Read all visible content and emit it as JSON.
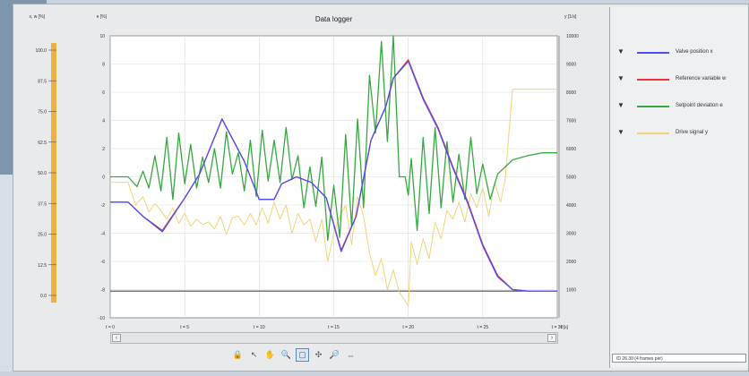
{
  "window": {
    "title": "Data logger"
  },
  "toolbar": {
    "icons": [
      "lock-icon",
      "pointer-icon",
      "hand-icon",
      "zoom-in-icon",
      "zoom-rect-icon",
      "zoom-all-icon",
      "zoom-out-icon",
      "zoom-x-icon"
    ],
    "active_index": 4
  },
  "legend": [
    {
      "label": "Valve position x",
      "color": "#4b4df2"
    },
    {
      "label": "Reference variable w",
      "color": "#e8333d"
    },
    {
      "label": "Setpoint deviation e",
      "color": "#36a83f"
    },
    {
      "label": "Drive signal y",
      "color": "#f0d37a"
    }
  ],
  "status_text": "ID 26 30 (4 frames per)",
  "chart_data": {
    "type": "line",
    "title": "Data logger",
    "left_axis_1": {
      "label": "x, w [%]",
      "ticks": [
        "100.0",
        "87.5",
        "75.0",
        "62.5",
        "50.0",
        "37.5",
        "25.0",
        "12.5",
        "0.0"
      ],
      "range": [
        0,
        100
      ]
    },
    "left_axis_2": {
      "label": "e [%]",
      "ticks": [
        "10",
        "8",
        "6",
        "4",
        "2",
        "0",
        "-2",
        "-4",
        "-6",
        "-8",
        "-10"
      ],
      "range": [
        -10,
        10
      ]
    },
    "right_axis": {
      "label": "y [1/s]",
      "ticks": [
        "10000",
        "9000",
        "8000",
        "7000",
        "6000",
        "5000",
        "4000",
        "3000",
        "2000",
        "1000"
      ],
      "range": [
        0,
        10000
      ]
    },
    "x_axis": {
      "ticks": [
        "t = 0",
        "t = 5",
        "t = 10",
        "t = 15",
        "t = 20",
        "t = 25",
        "t = 30"
      ],
      "unit": "t [s]",
      "range": [
        0,
        30
      ]
    },
    "grid": true,
    "series": [
      {
        "name": "Valve position x",
        "axis": "e",
        "color": "#4b4df2",
        "x": [
          0,
          1.2,
          2.2,
          3.5,
          5,
          6,
          7.5,
          9,
          10,
          11,
          11.5,
          12.5,
          13.5,
          14.5,
          15.5,
          16.5,
          17.5,
          18.5,
          19,
          20,
          21,
          22,
          23,
          24,
          25,
          26,
          27,
          28,
          30
        ],
        "y": [
          -1.8,
          -1.8,
          -2.8,
          -3.9,
          -1.5,
          0.2,
          4.1,
          1.1,
          -1.6,
          -1.6,
          -0.5,
          0,
          -0.4,
          -1.5,
          -5.3,
          -2.8,
          2.6,
          5,
          7,
          8.2,
          5.5,
          3.4,
          0.6,
          -1.9,
          -4.9,
          -7.1,
          -8,
          -8.1,
          -8.1
        ]
      },
      {
        "name": "Reference variable w",
        "axis": "e",
        "color": "#e8333d",
        "x": [
          0,
          1.2,
          2.2,
          3.5,
          5,
          6,
          7.5,
          9,
          10,
          11,
          11.5,
          12.5,
          13.5,
          14.5,
          15.5,
          16.5,
          17.5,
          18.5,
          19,
          20,
          21,
          22,
          23,
          24,
          25,
          26,
          27,
          28,
          30
        ],
        "y": [
          -1.8,
          -1.8,
          -2.8,
          -3.8,
          -1.5,
          0.2,
          4.1,
          1.1,
          -1.6,
          -1.6,
          -0.5,
          0,
          -0.4,
          -1.5,
          -5.2,
          -2.8,
          2.6,
          5,
          7,
          8.3,
          5.6,
          3.5,
          0.7,
          -1.8,
          -4.8,
          -7,
          -8,
          -8.1,
          -8.1
        ]
      },
      {
        "name": "Setpoint deviation e",
        "axis": "e",
        "color": "#36a83f",
        "x": [
          0,
          1.2,
          1.8,
          2.2,
          2.6,
          3,
          3.4,
          3.8,
          4.2,
          4.6,
          5,
          5.4,
          5.8,
          6.2,
          6.6,
          7,
          7.4,
          7.8,
          8.2,
          8.6,
          9,
          9.4,
          9.8,
          10.2,
          10.6,
          11,
          11.4,
          11.8,
          12.2,
          12.6,
          13,
          13.4,
          13.8,
          14.2,
          14.6,
          15,
          15.4,
          15.8,
          16.2,
          16.6,
          17,
          17.4,
          17.8,
          18.2,
          18.6,
          19,
          19.4,
          19.8,
          20,
          20.2,
          20.6,
          21,
          21.4,
          21.8,
          22.2,
          22.6,
          23,
          23.4,
          23.8,
          24.2,
          24.6,
          25,
          25.5,
          26,
          27,
          28,
          29,
          30
        ],
        "y": [
          0,
          0,
          -0.7,
          0.4,
          -0.8,
          1.5,
          -1,
          2.8,
          -1.6,
          3.1,
          -0.5,
          2.3,
          -0.8,
          1.4,
          -0.4,
          2,
          -0.8,
          3.2,
          0.2,
          1.7,
          -1,
          2.6,
          -1.4,
          3.3,
          -0.3,
          2.6,
          -0.4,
          3.5,
          -0.2,
          1.5,
          -2.2,
          0.7,
          -2.1,
          1.4,
          -4.5,
          -0.6,
          -4.3,
          3,
          -3.5,
          4.1,
          -2.2,
          7.2,
          3.1,
          9.6,
          2.5,
          10,
          0,
          0,
          -1.3,
          1.3,
          -3.8,
          2.8,
          -2.6,
          3.5,
          -2.2,
          2.5,
          -1.8,
          1.6,
          -1.6,
          2.8,
          -1.2,
          0.9,
          -1.6,
          0.2,
          1.2,
          1.5,
          1.7,
          1.7
        ]
      },
      {
        "name": "Drive signal y",
        "axis": "y",
        "color": "#f0d37a",
        "x": [
          0,
          1.2,
          1.7,
          2.2,
          2.6,
          3,
          3.4,
          3.8,
          4.2,
          4.6,
          5,
          5.4,
          5.8,
          6.2,
          6.6,
          7,
          7.4,
          7.8,
          8.2,
          8.6,
          9,
          9.4,
          9.8,
          10.2,
          10.6,
          11,
          11.4,
          11.8,
          12.2,
          12.6,
          13,
          13.4,
          13.8,
          14.2,
          14.6,
          15,
          15.4,
          15.8,
          16.2,
          16.6,
          17,
          17.4,
          17.8,
          18.2,
          18.6,
          19,
          19.4,
          19.8,
          20,
          20.2,
          20.6,
          21,
          21.4,
          21.8,
          22.2,
          22.6,
          23,
          23.4,
          23.8,
          24.2,
          24.6,
          25,
          25.4,
          25.8,
          26.2,
          26.5,
          27,
          28,
          30
        ],
        "y": [
          4800,
          4800,
          4000,
          4300,
          3750,
          4050,
          3800,
          3500,
          3900,
          3350,
          3700,
          3250,
          3500,
          3300,
          3400,
          3150,
          3600,
          2950,
          3550,
          3600,
          3300,
          3700,
          3300,
          3900,
          3350,
          4100,
          3500,
          4000,
          3000,
          3700,
          3300,
          3500,
          2700,
          3500,
          2000,
          3000,
          3600,
          4000,
          2600,
          4300,
          3600,
          2300,
          1500,
          2100,
          1000,
          1700,
          900,
          600,
          400,
          2700,
          1900,
          2800,
          2100,
          3400,
          2800,
          3800,
          3500,
          4100,
          3400,
          4400,
          3900,
          4600,
          3600,
          4800,
          4100,
          4900,
          8100,
          8100,
          8100
        ]
      }
    ]
  }
}
